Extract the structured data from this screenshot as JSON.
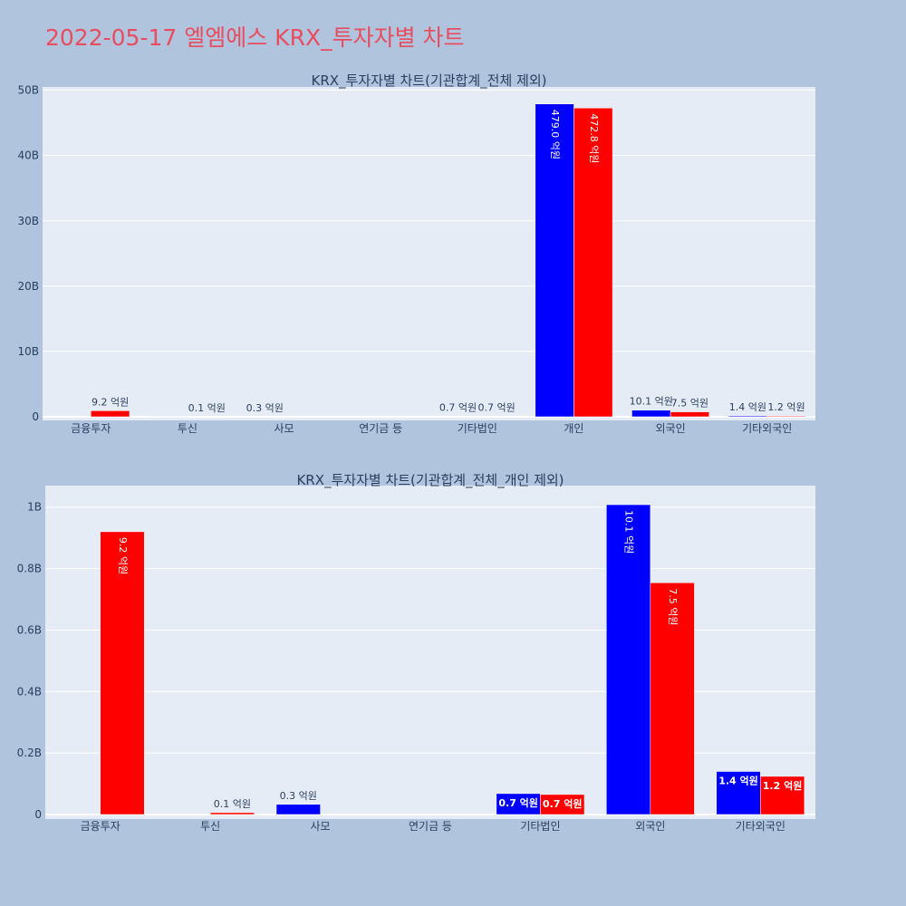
{
  "page_title": "2022-05-17 엘엠에스 KRX_투자자별 차트",
  "colors": {
    "buy": "#0000ff",
    "sell": "#ff0000",
    "plot_bg": "#e5ecf6",
    "page_bg": "#b0c4de",
    "title": "#ea4c5f"
  },
  "chart_data": [
    {
      "type": "bar",
      "title": "KRX_투자자별 차트(기관합계_전체 제외)",
      "categories": [
        "금융투자",
        "투신",
        "사모",
        "연기금 등",
        "기타법인",
        "개인",
        "외국인",
        "기타외국인"
      ],
      "series": [
        {
          "color": "#0000ff",
          "values": [
            0,
            0.01,
            0.03,
            0,
            0.07,
            47.9,
            1.01,
            0.14
          ],
          "labels": [
            "",
            "",
            "0.3 억원",
            "",
            "0.7 억원",
            "479.0 억원",
            "10.1 억원",
            "1.4 억원"
          ]
        },
        {
          "color": "#ff0000",
          "values": [
            0.92,
            0.01,
            0,
            0,
            0.07,
            47.28,
            0.75,
            0.12
          ],
          "labels": [
            "9.2 억원",
            "0.1 억원",
            "",
            "",
            "0.7 억원",
            "472.8 억원",
            "7.5 억원",
            "1.2 억원"
          ]
        }
      ],
      "ylim": [
        0,
        50.5
      ],
      "yticks": [
        0,
        10,
        20,
        30,
        40,
        50
      ],
      "ytick_labels": [
        "0",
        "10B",
        "20B",
        "30B",
        "40B",
        "50B"
      ],
      "grid": true,
      "xlabel": "",
      "ylabel": ""
    },
    {
      "type": "bar",
      "title": "KRX_투자자별 차트(기관합계_전체_개인 제외)",
      "categories": [
        "금융투자",
        "투신",
        "사모",
        "연기금 등",
        "기타법인",
        "외국인",
        "기타외국인"
      ],
      "series": [
        {
          "color": "#0000ff",
          "values": [
            0,
            0,
            0.033,
            0,
            0.068,
            1.008,
            0.14
          ],
          "labels": [
            "",
            "",
            "0.3 억원",
            "",
            "0.7 억원",
            "10.1 억원",
            "1.4 억원"
          ]
        },
        {
          "color": "#ff0000",
          "values": [
            0.92,
            0.006,
            0,
            0,
            0.065,
            0.754,
            0.124
          ],
          "labels": [
            "9.2 억원",
            "0.1 억원",
            "",
            "",
            "0.7 억원",
            "7.5 억원",
            "1.2 억원"
          ]
        }
      ],
      "ylim": [
        0,
        1.07
      ],
      "yticks": [
        0,
        0.2,
        0.4,
        0.6,
        0.8,
        1.0
      ],
      "ytick_labels": [
        "0",
        "0.2B",
        "0.4B",
        "0.6B",
        "0.8B",
        "1B"
      ],
      "grid": true,
      "xlabel": "",
      "ylabel": ""
    }
  ]
}
